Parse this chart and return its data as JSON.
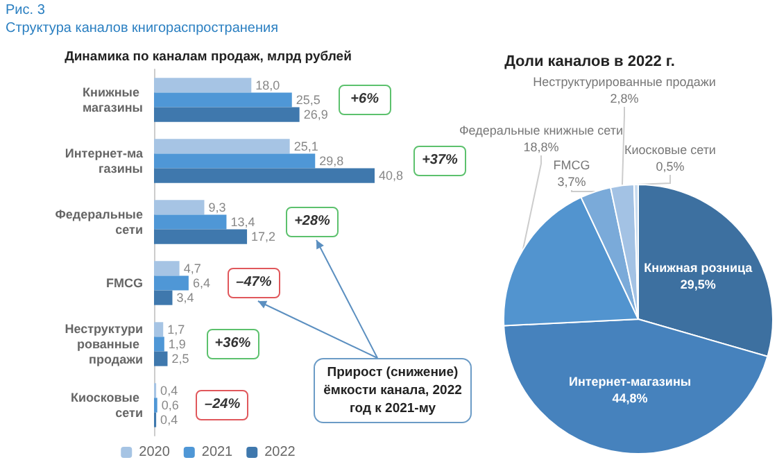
{
  "chart_data": [
    {
      "type": "bar",
      "orientation": "horizontal",
      "title": "Динамика по каналам продаж, млрд рублей",
      "categories": [
        "Книжные магазины",
        "Интернет-магазины",
        "Федеральные сети",
        "FMCG",
        "Неструктурированные продажи",
        "Киосковые сети"
      ],
      "series": [
        {
          "name": "2020",
          "color": "#a6c4e4",
          "values": [
            18.0,
            25.1,
            9.3,
            4.7,
            1.7,
            0.4
          ],
          "value_labels": [
            "18,0",
            "25,1",
            "9,3",
            "4,7",
            "1,7",
            "0,4"
          ]
        },
        {
          "name": "2021",
          "color": "#4f97d6",
          "values": [
            25.5,
            29.8,
            13.4,
            6.4,
            1.9,
            0.6
          ],
          "value_labels": [
            "25,5",
            "29,8",
            "13,4",
            "6,4",
            "1,9",
            "0,6"
          ]
        },
        {
          "name": "2022",
          "color": "#3f78ad",
          "values": [
            26.9,
            40.8,
            17.2,
            3.4,
            2.5,
            0.4
          ],
          "value_labels": [
            "26,9",
            "40,8",
            "17,2",
            "3,4",
            "2,5",
            "0,4"
          ]
        }
      ],
      "legend": "bottom",
      "annotations": [
        "Рис. 3",
        "Структура каналов книгораспространения",
        "+6%",
        "+37%",
        "+28%",
        "–47%",
        "+36%",
        "–24%",
        "Прирост (снижение) ёмкости канала, 2022 год к 2021-му"
      ]
    },
    {
      "type": "pie",
      "title": "Доли каналов в 2022 г.",
      "categories": [
        "Книжная розница",
        "Интернет-магазины",
        "Федеральные книжные сети",
        "FMCG",
        "Неструктурированные продажи",
        "Киосковые сети"
      ],
      "values": [
        29.5,
        44.8,
        18.8,
        3.7,
        2.8,
        0.5
      ],
      "colors": [
        "#3d70a0",
        "#4682bd",
        "#5294cf",
        "#7aaad9",
        "#a3c2e4",
        "#c8dbef"
      ],
      "value_labels": [
        "29,5%",
        "44,8%",
        "18,8%",
        "3,7%",
        "2,8%",
        "0,5%"
      ]
    }
  ]
}
